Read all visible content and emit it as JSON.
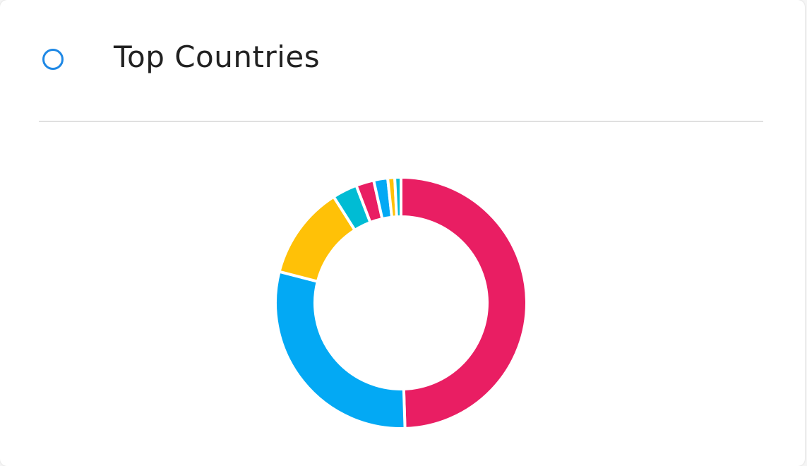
{
  "header": {
    "title": "Top Countries",
    "icon": "circle-outline-icon",
    "icon_color": "#1e88e5"
  },
  "chart_data": {
    "type": "pie",
    "variant": "donut",
    "title": "",
    "values": [
      49.5,
      29.5,
      12.0,
      3.2,
      2.3,
      1.8,
      0.9,
      0.8
    ],
    "colors": [
      "#e91e63",
      "#03a9f4",
      "#ffc107",
      "#00bcd4",
      "#e91e63",
      "#03a9f4",
      "#ffc107",
      "#00bcd4"
    ],
    "legend": "none"
  }
}
